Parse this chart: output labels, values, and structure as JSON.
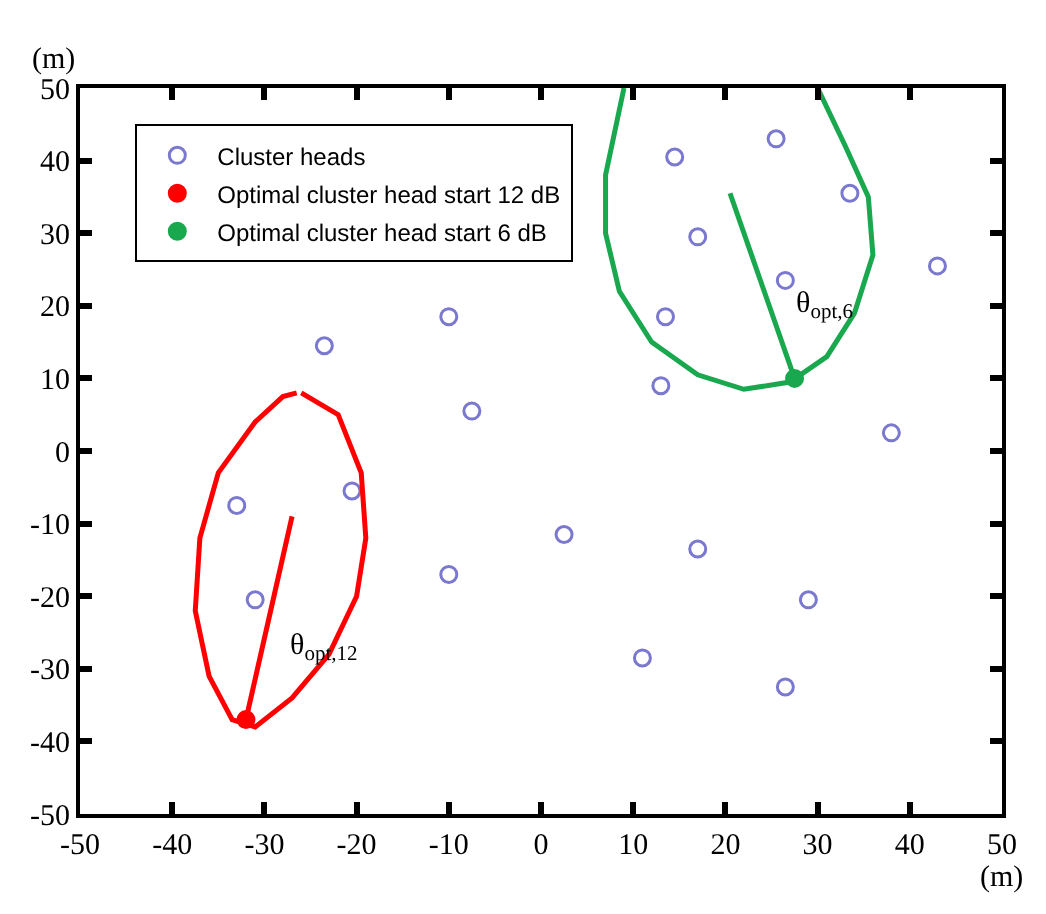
{
  "chart_data": {
    "type": "scatter",
    "xlabel": "(m)",
    "ylabel": "(m)",
    "xlim": [
      -50,
      50
    ],
    "xticks": [
      -50,
      -40,
      -30,
      -20,
      -10,
      0,
      10,
      20,
      30,
      40,
      50
    ],
    "ylim": [
      -50,
      50
    ],
    "yticks": [
      -50,
      -40,
      -30,
      -20,
      -10,
      0,
      10,
      20,
      30,
      40,
      50
    ],
    "legend": "top left",
    "series": [
      {
        "name": "Cluster heads",
        "marker": "circle",
        "color": "#7b78d0",
        "x": [
          14.5,
          25.5,
          33.5,
          17,
          43,
          26.5,
          -10,
          13.5,
          -23.5,
          13,
          -7.5,
          38,
          -33,
          -20.5,
          2.5,
          17,
          -10,
          -31,
          29,
          11,
          26.5
        ],
        "values": [
          40.5,
          43,
          35.5,
          29.5,
          25.5,
          23.5,
          18.5,
          18.5,
          14.5,
          9,
          5.5,
          2.5,
          -7.5,
          -5.5,
          -11.5,
          -13.5,
          -17,
          -20.5,
          -20.5,
          -28.5,
          -32.5
        ]
      },
      {
        "name": "Optimal cluster head start 12 dB",
        "marker": "circle",
        "color": "#ff0000",
        "x": [
          -32
        ],
        "values": [
          -37
        ]
      },
      {
        "name": "Optimal cluster head start 6 dB",
        "marker": "circle",
        "color": "#1aa84f",
        "x": [
          27.5
        ],
        "values": [
          10
        ]
      },
      {
        "type": "line",
        "marker": "none",
        "color": "#ff0000",
        "x": [
          -32,
          -27,
          null,
          -26,
          -22,
          -19.5,
          -19,
          -20,
          -23,
          -27,
          -31,
          -33.5,
          -36,
          -37.5,
          -37,
          -35,
          -31,
          -28,
          -26.5
        ],
        "values": [
          -37,
          -9,
          null,
          8,
          5,
          -3,
          -12,
          -20,
          -28,
          -34,
          -38,
          -37,
          -31,
          -22,
          -12,
          -3,
          4,
          7.5,
          8
        ]
      },
      {
        "type": "line",
        "marker": "none",
        "color": "#1aa84f",
        "x": [
          9,
          7,
          7,
          8.5,
          12,
          17,
          22,
          27,
          31,
          34,
          36,
          35.5,
          33,
          30,
          null,
          27.5,
          20.5
        ],
        "values": [
          50,
          38,
          30,
          22,
          15,
          10.5,
          8.5,
          9.5,
          13,
          19,
          27,
          35,
          42,
          50,
          null,
          10,
          35.5
        ]
      }
    ],
    "annotations": [
      {
        "text": "θ$_{opt,6}$",
        "x": 24.7,
        "y": 20
      },
      {
        "text": "θ$_{opt,12}$",
        "x": -30.2,
        "y": -27
      }
    ]
  }
}
